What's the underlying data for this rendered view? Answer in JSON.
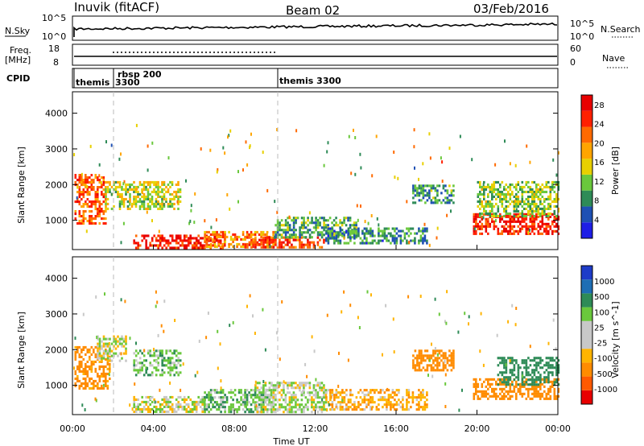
{
  "header": {
    "station": "Inuvik (fitACF)",
    "beam": "Beam 02",
    "date": "03/Feb/2016"
  },
  "top_panels": {
    "nsky_label": "N.Sky",
    "nsky_ticks": [
      "10^5",
      "10^0"
    ],
    "nsearch_label": "N.Search",
    "nsearch_ticks": [
      "10^5",
      "10^0"
    ],
    "freq_label": "Freq.",
    "freq_unit": "[MHz]",
    "freq_ticks": [
      "18",
      "8"
    ],
    "nave_label": "Nave",
    "nave_ticks": [
      "60",
      "0"
    ],
    "cpid_label": "CPID",
    "cpid_entries": [
      {
        "name": "themis",
        "number": "3300"
      },
      {
        "name": "rbsp 200",
        "number": ""
      },
      {
        "name": "themis 3300",
        "number": ""
      }
    ]
  },
  "colors": {
    "power_scale": [
      "#1e1ee6",
      "#1e50b4",
      "#2e8b57",
      "#6ac83c",
      "#e8d000",
      "#ffa500",
      "#ff6a00",
      "#ff2000",
      "#e80000"
    ],
    "velocity_scale": [
      "#e80000",
      "#ff5a00",
      "#ff8c00",
      "#ffb400",
      "#c8c8c8",
      "#c8c8c8",
      "#6ac83c",
      "#2e8b57",
      "#1e6eb4",
      "#1e3cc8"
    ]
  },
  "chart_data": [
    {
      "type": "heatmap",
      "title": "",
      "xlabel": "",
      "ylabel": "Slant Range [km]",
      "xlim": [
        0,
        24
      ],
      "ylim": [
        180,
        4600
      ],
      "x_ticks": [
        "00:00",
        "04:00",
        "08:00",
        "12:00",
        "16:00",
        "20:00",
        "00:00"
      ],
      "y_ticks": [
        1000,
        2000,
        3000,
        4000
      ],
      "colorbar_label": "Power [dB]",
      "colorbar_ticks": [
        4,
        8,
        12,
        16,
        20,
        24,
        28
      ],
      "colorbar_range": [
        0,
        30
      ],
      "regions": [
        {
          "t0": 0.1,
          "t1": 1.6,
          "r0": 900,
          "r1": 2300,
          "level": 22
        },
        {
          "t0": 1.6,
          "t1": 5.3,
          "r0": 1300,
          "r1": 2100,
          "level": 14
        },
        {
          "t0": 3.0,
          "t1": 7.5,
          "r0": 230,
          "r1": 600,
          "level": 26
        },
        {
          "t0": 6.5,
          "t1": 10.0,
          "r0": 250,
          "r1": 700,
          "level": 20
        },
        {
          "t0": 8.5,
          "t1": 12.5,
          "r0": 230,
          "r1": 550,
          "level": 24
        },
        {
          "t0": 10.0,
          "t1": 14.0,
          "r0": 500,
          "r1": 1100,
          "level": 10
        },
        {
          "t0": 12.5,
          "t1": 17.5,
          "r0": 350,
          "r1": 800,
          "level": 8
        },
        {
          "t0": 16.8,
          "t1": 18.8,
          "r0": 1500,
          "r1": 2000,
          "level": 9
        },
        {
          "t0": 19.8,
          "t1": 24.0,
          "r0": 600,
          "r1": 1200,
          "level": 26
        },
        {
          "t0": 20.0,
          "t1": 24.0,
          "r0": 1100,
          "r1": 2100,
          "level": 12
        }
      ]
    },
    {
      "type": "heatmap",
      "title": "",
      "xlabel": "Time UT",
      "ylabel": "Slant Range [km]",
      "xlim": [
        0,
        24
      ],
      "ylim": [
        180,
        4600
      ],
      "x_ticks": [
        "00:00",
        "04:00",
        "08:00",
        "12:00",
        "16:00",
        "20:00",
        "00:00"
      ],
      "y_ticks": [
        1000,
        2000,
        3000,
        4000
      ],
      "colorbar_label": "Velocity [m s^-1]",
      "colorbar_ticks": [
        1000,
        500,
        100,
        25,
        -25,
        -100,
        -500,
        -1000
      ],
      "regions": [
        {
          "t0": 0.1,
          "t1": 1.8,
          "r0": 900,
          "r1": 2100,
          "vel": -150
        },
        {
          "t0": 1.2,
          "t1": 2.6,
          "r0": 1700,
          "r1": 2400,
          "vel": 0
        },
        {
          "t0": 3.0,
          "t1": 5.3,
          "r0": 1300,
          "r1": 2000,
          "vel": 60
        },
        {
          "t0": 3.0,
          "t1": 6.5,
          "r0": 230,
          "r1": 700,
          "vel": 0
        },
        {
          "t0": 6.5,
          "t1": 10.0,
          "r0": 250,
          "r1": 900,
          "vel": 70
        },
        {
          "t0": 9.0,
          "t1": 12.5,
          "r0": 250,
          "r1": 1100,
          "vel": 20
        },
        {
          "t0": 12.5,
          "t1": 17.5,
          "r0": 300,
          "r1": 900,
          "vel": -80
        },
        {
          "t0": 16.8,
          "t1": 18.8,
          "r0": 1400,
          "r1": 2000,
          "vel": -200
        },
        {
          "t0": 19.8,
          "t1": 24.0,
          "r0": 600,
          "r1": 1200,
          "vel": -400
        },
        {
          "t0": 21.0,
          "t1": 24.0,
          "r0": 1000,
          "r1": 1800,
          "vel": 400
        }
      ]
    }
  ]
}
